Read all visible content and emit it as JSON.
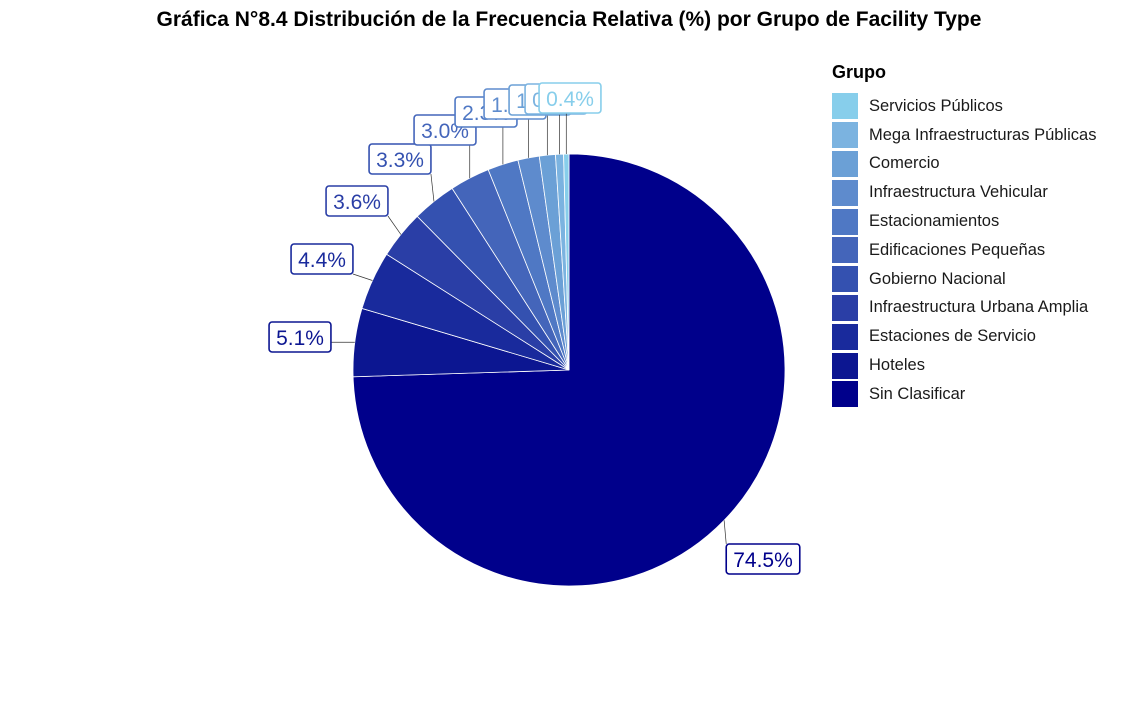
{
  "chart_data": {
    "type": "pie",
    "title": "Gráfica N°8.4 Distribución de la Frecuencia Relativa (%) por Grupo de Facility Type",
    "legend_title": "Grupo",
    "legend_position": "right",
    "slices": [
      {
        "name": "Sin Clasificar",
        "value": 74.5,
        "label": "74.5%",
        "color": "#00008B"
      },
      {
        "name": "Hoteles",
        "value": 5.1,
        "label": "5.1%",
        "color": "#0C1691"
      },
      {
        "name": "Estaciones de Servicio",
        "value": 4.4,
        "label": "4.4%",
        "color": "#192A9C"
      },
      {
        "name": "Infraestructura Urbana Amplia",
        "value": 3.6,
        "label": "3.6%",
        "color": "#2A3EA6"
      },
      {
        "name": "Gobierno Nacional",
        "value": 3.3,
        "label": "3.3%",
        "color": "#3451B0"
      },
      {
        "name": "Edificaciones Pequeñas",
        "value": 3.0,
        "label": "3.0%",
        "color": "#4465BA"
      },
      {
        "name": "Estacionamientos",
        "value": 2.3,
        "label": "2.3%",
        "color": "#4F78C4"
      },
      {
        "name": "Infraestructura Vehicular",
        "value": 1.6,
        "label": "1.6%",
        "color": "#5E8BCD"
      },
      {
        "name": "Comercio",
        "value": 1.2,
        "label": "1.2%",
        "color": "#6BA0D6"
      },
      {
        "name": "Mega Infraestructuras Públicas",
        "value": 0.6,
        "label": "0.6%",
        "color": "#7BB3E0"
      },
      {
        "name": "Servicios Públicos",
        "value": 0.4,
        "label": "0.4%",
        "color": "#87CEEB"
      }
    ]
  }
}
